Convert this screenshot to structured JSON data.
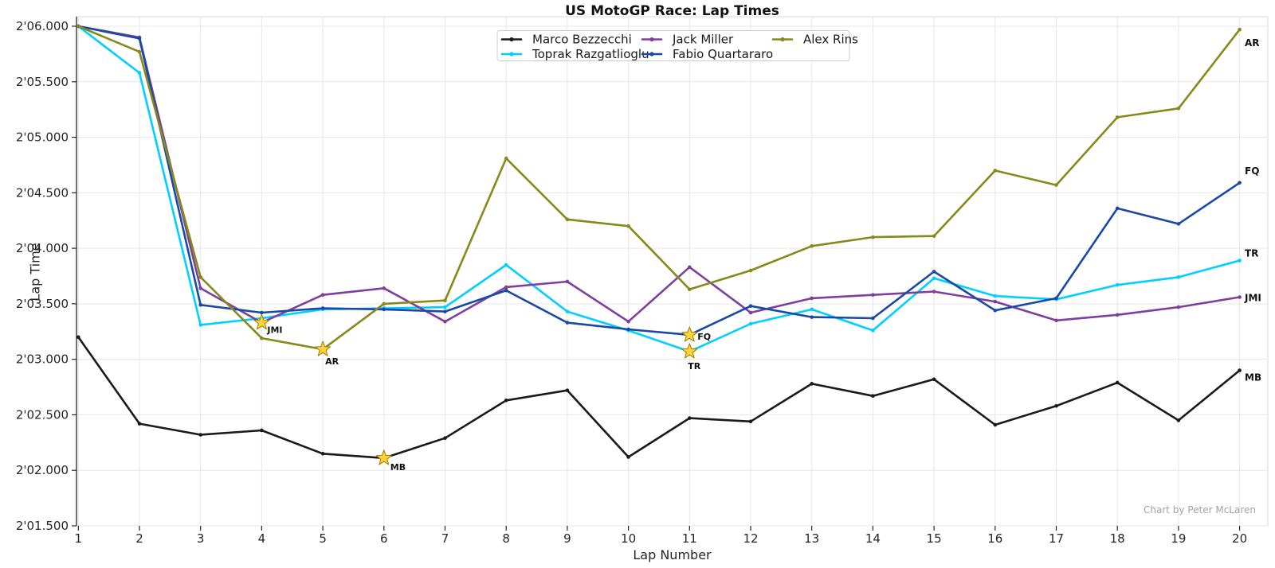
{
  "credit": "Chart by Peter McLaren",
  "chart_data": {
    "type": "line",
    "title": "US MotoGP Race: Lap Times",
    "xlabel": "Lap Number",
    "ylabel": "Lap Time",
    "grid": true,
    "legend_position": "top-center",
    "x": [
      1,
      2,
      3,
      4,
      5,
      6,
      7,
      8,
      9,
      10,
      11,
      12,
      13,
      14,
      15,
      16,
      17,
      18,
      19,
      20
    ],
    "ylim": [
      121.5,
      126.0
    ],
    "yticks": [
      126.0,
      125.5,
      125.0,
      124.5,
      124.0,
      123.5,
      123.0,
      122.5,
      122.0,
      121.5
    ],
    "ytick_labels": [
      "2'06.000",
      "2'05.500",
      "2'05.000",
      "2'04.500",
      "2'04.000",
      "2'03.500",
      "2'03.000",
      "2'02.500",
      "2'02.000",
      "2'01.500"
    ],
    "star_color": "#FFD43B",
    "star_edge_color": "#9c7a00",
    "series": [
      {
        "name": "Marco Bezzecchi",
        "abbr": "MB",
        "color": "#1a1a1a",
        "best_lap": 6,
        "values": [
          123.2,
          122.42,
          122.32,
          122.36,
          122.15,
          122.11,
          122.29,
          122.63,
          122.72,
          122.12,
          122.47,
          122.44,
          122.78,
          122.67,
          122.82,
          122.41,
          122.58,
          122.79,
          122.45,
          122.9
        ]
      },
      {
        "name": "Toprak Razgatlioglu",
        "abbr": "TR",
        "color": "#00cfff",
        "best_lap": 11,
        "values": [
          126.0,
          125.58,
          123.31,
          123.37,
          123.45,
          123.46,
          123.47,
          123.85,
          123.43,
          123.26,
          123.07,
          123.32,
          123.45,
          123.26,
          123.73,
          123.57,
          123.54,
          123.67,
          123.74,
          123.89
        ]
      },
      {
        "name": "Jack Miller",
        "abbr": "JMI",
        "color": "#7e3f9d",
        "best_lap": 4,
        "values": [
          126.0,
          125.9,
          123.64,
          123.33,
          123.58,
          123.64,
          123.34,
          123.65,
          123.7,
          123.34,
          123.83,
          123.42,
          123.55,
          123.58,
          123.61,
          123.52,
          123.35,
          123.4,
          123.47,
          123.56
        ]
      },
      {
        "name": "Fabio Quartararo",
        "abbr": "FQ",
        "color": "#1a49a5",
        "best_lap": 11,
        "values": [
          126.0,
          125.89,
          123.49,
          123.42,
          123.46,
          123.45,
          123.43,
          123.62,
          123.33,
          123.27,
          123.22,
          123.48,
          123.38,
          123.37,
          123.79,
          123.44,
          123.55,
          124.36,
          124.22,
          124.59
        ]
      },
      {
        "name": "Alex Rins",
        "abbr": "AR",
        "color": "#858a1b",
        "best_lap": 5,
        "values": [
          126.0,
          125.77,
          123.74,
          123.19,
          123.09,
          123.5,
          123.53,
          124.81,
          124.26,
          124.2,
          123.63,
          123.8,
          124.02,
          124.1,
          124.11,
          124.7,
          124.57,
          125.18,
          125.26,
          125.97
        ]
      }
    ]
  }
}
